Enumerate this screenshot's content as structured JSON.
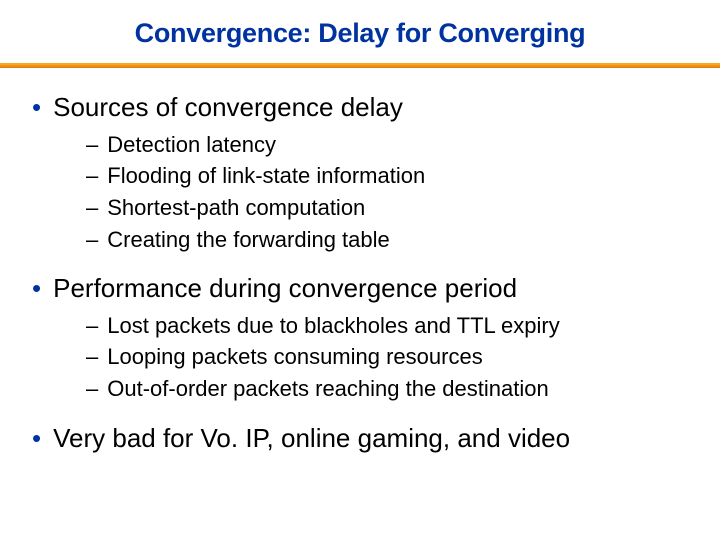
{
  "title": "Convergence: Delay for Converging",
  "title_color": "#0033a0",
  "divider_colors": [
    "#f6a623",
    "#ff9900"
  ],
  "bullet_color": "#0033a0",
  "body_color": "#000000",
  "background_color": "#ffffff",
  "title_fontsize": 27,
  "l1_fontsize": 26,
  "l2_fontsize": 22,
  "font_family": "Verdana, Tahoma, Geneva, sans-serif",
  "sections": [
    {
      "heading": "Sources of convergence delay",
      "items": [
        "Detection latency",
        "Flooding of link-state information",
        "Shortest-path computation",
        "Creating the forwarding table"
      ]
    },
    {
      "heading": "Performance during convergence period",
      "items": [
        "Lost packets due to blackholes and TTL expiry",
        "Looping packets consuming resources",
        "Out-of-order packets reaching the destination"
      ]
    },
    {
      "heading": "Very bad for Vo. IP, online gaming, and video",
      "items": []
    }
  ]
}
